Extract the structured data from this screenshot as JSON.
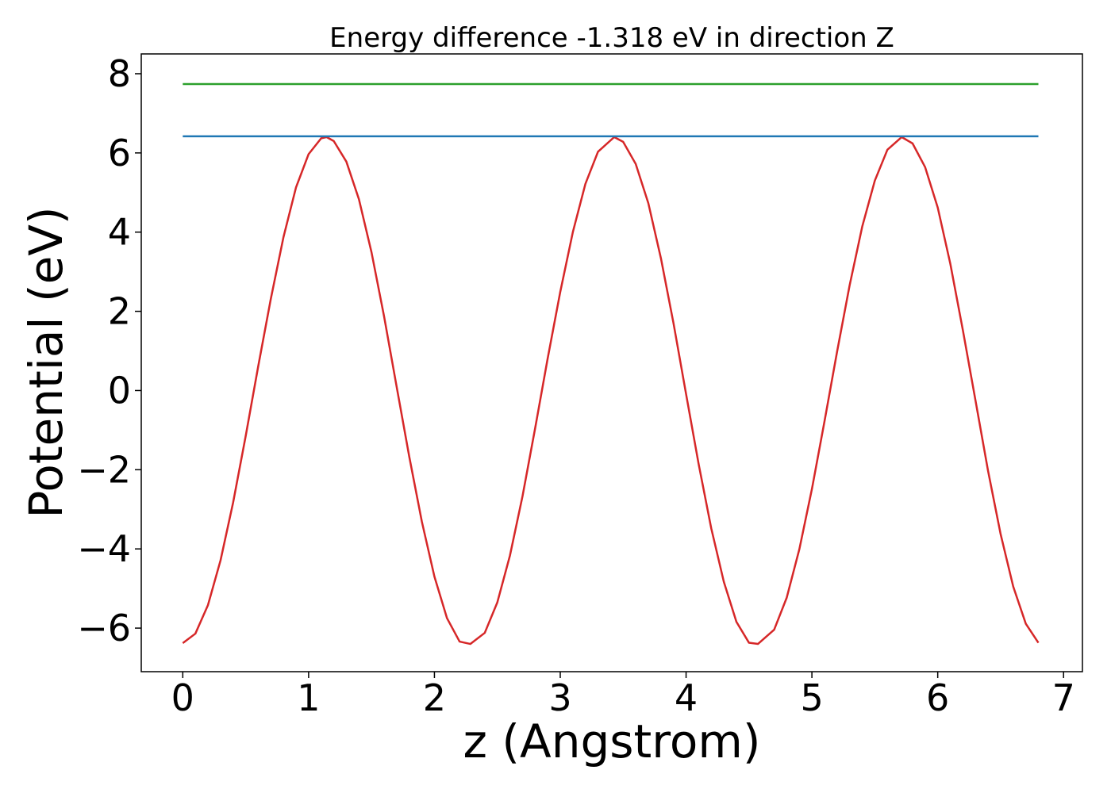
{
  "chart_data": {
    "type": "line",
    "title": "Energy difference -1.318 eV in direction Z",
    "xlabel": "z (Angstrom)",
    "ylabel": "Potential (eV)",
    "xlim": [
      -0.33,
      7.15
    ],
    "ylim": [
      -7.1,
      8.5
    ],
    "xticks": [
      0,
      1,
      2,
      3,
      4,
      5,
      6,
      7
    ],
    "xtick_labels": [
      "0",
      "1",
      "2",
      "3",
      "4",
      "5",
      "6",
      "7"
    ],
    "yticks": [
      -6,
      -4,
      -2,
      0,
      2,
      4,
      6,
      8
    ],
    "ytick_labels": [
      "−6",
      "−4",
      "−2",
      "0",
      "2",
      "4",
      "6",
      "8"
    ],
    "grid": false,
    "legend": "none",
    "series": [
      {
        "color": "#d62728",
        "x": [
          0.0,
          0.1,
          0.2,
          0.3,
          0.4,
          0.5,
          0.6,
          0.7,
          0.8,
          0.9,
          1.0,
          1.1,
          1.143,
          1.2,
          1.3,
          1.4,
          1.5,
          1.6,
          1.7,
          1.8,
          1.9,
          2.0,
          2.1,
          2.2,
          2.286,
          2.4,
          2.5,
          2.6,
          2.7,
          2.8,
          2.9,
          3.0,
          3.1,
          3.2,
          3.3,
          3.429,
          3.5,
          3.6,
          3.7,
          3.8,
          3.9,
          4.0,
          4.1,
          4.2,
          4.3,
          4.4,
          4.5,
          4.571,
          4.7,
          4.8,
          4.9,
          5.0,
          5.1,
          5.2,
          5.3,
          5.4,
          5.5,
          5.6,
          5.714,
          5.8,
          5.9,
          6.0,
          6.1,
          6.2,
          6.3,
          6.4,
          6.5,
          6.6,
          6.7,
          6.8
        ],
        "y": [
          -6.38,
          -6.14,
          -5.42,
          -4.29,
          -2.83,
          -1.15,
          0.62,
          2.32,
          3.87,
          5.13,
          5.97,
          6.37,
          6.4,
          6.3,
          5.78,
          4.83,
          3.49,
          1.87,
          0.09,
          -1.67,
          -3.31,
          -4.7,
          -5.75,
          -6.34,
          -6.4,
          -6.12,
          -5.35,
          -4.17,
          -2.67,
          -0.96,
          0.81,
          2.49,
          4.0,
          5.22,
          6.03,
          6.4,
          6.28,
          5.72,
          4.73,
          3.34,
          1.7,
          -0.09,
          -1.86,
          -3.48,
          -4.83,
          -5.84,
          -6.37,
          -6.4,
          -6.04,
          -5.23,
          -4.01,
          -2.49,
          -0.78,
          0.98,
          2.66,
          4.14,
          5.3,
          6.08,
          6.4,
          6.24,
          5.64,
          4.62,
          3.2,
          1.52,
          -0.25,
          -2.03,
          -3.63,
          -4.95,
          -5.89,
          -6.37
        ]
      },
      {
        "color": "#1f77b4",
        "x": [
          0.0,
          6.8
        ],
        "y": [
          6.42,
          6.42
        ]
      },
      {
        "color": "#2ca02c",
        "x": [
          0.0,
          6.8
        ],
        "y": [
          7.74,
          7.74
        ]
      }
    ]
  }
}
